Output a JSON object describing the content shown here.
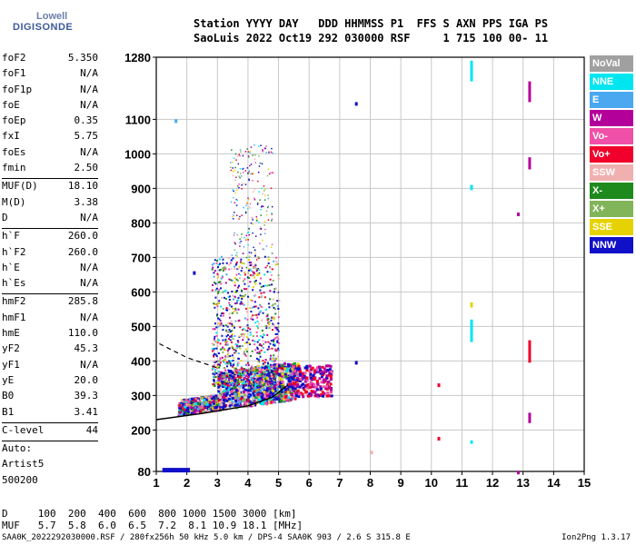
{
  "logo": {
    "line1": "Lowell",
    "line2": "DIGISONDE"
  },
  "header": {
    "line1": "Station YYYY DAY   DDD HHMMSS P1  FFS S AXN PPS IGA PS",
    "line2": "SaoLuis 2022 Oct19 292 030000 RSF     1 715 100 00- 11"
  },
  "params": [
    [
      {
        "label": "foF2",
        "value": "5.350"
      },
      {
        "label": "foF1",
        "value": "N/A"
      },
      {
        "label": "foF1p",
        "value": "N/A"
      },
      {
        "label": "foE",
        "value": "N/A"
      },
      {
        "label": "foEp",
        "value": "0.35"
      },
      {
        "label": "fxI",
        "value": "5.75"
      },
      {
        "label": "foEs",
        "value": "N/A"
      },
      {
        "label": "fmin",
        "value": "2.50"
      }
    ],
    [
      {
        "label": "MUF(D)",
        "value": "18.10"
      },
      {
        "label": "M(D)",
        "value": "3.38"
      },
      {
        "label": "D",
        "value": "N/A"
      }
    ],
    [
      {
        "label": "h`F",
        "value": "260.0"
      },
      {
        "label": "h`F2",
        "value": "260.0"
      },
      {
        "label": "h`E",
        "value": "N/A"
      },
      {
        "label": "h`Es",
        "value": "N/A"
      }
    ],
    [
      {
        "label": "hmF2",
        "value": "285.8"
      },
      {
        "label": "hmF1",
        "value": "N/A"
      },
      {
        "label": "hmE",
        "value": "110.0"
      },
      {
        "label": "yF2",
        "value": "45.3"
      },
      {
        "label": "yF1",
        "value": "N/A"
      },
      {
        "label": "yE",
        "value": "20.0"
      },
      {
        "label": "B0",
        "value": "39.3"
      },
      {
        "label": "B1",
        "value": "3.41"
      }
    ],
    [
      {
        "label": "C-level",
        "value": "44"
      }
    ],
    [
      {
        "label": "Auto:",
        "value": ""
      },
      {
        "label": "Artist5",
        "value": ""
      },
      {
        "label": "500200",
        "value": ""
      }
    ]
  ],
  "legend": [
    {
      "label": "NoVal",
      "color": "#a0a0a0"
    },
    {
      "label": "NNE",
      "color": "#00e6f0"
    },
    {
      "label": "E",
      "color": "#4aa8f0"
    },
    {
      "label": "W",
      "color": "#b4009a"
    },
    {
      "label": "Vo-",
      "color": "#f050a8"
    },
    {
      "label": "Vo+",
      "color": "#f0002a"
    },
    {
      "label": "SSW",
      "color": "#f0b0b0"
    },
    {
      "label": "X-",
      "color": "#1e8a1e"
    },
    {
      "label": "X+",
      "color": "#82b45a"
    },
    {
      "label": "SSE",
      "color": "#e6d200"
    },
    {
      "label": "NNW",
      "color": "#1010c8"
    }
  ],
  "footer": {
    "d_row": "D     100  200  400  600  800 1000 1500 3000 [km]",
    "muf_row": "MUF   5.7  5.8  6.0  6.5  7.2  8.1 10.9 18.1 [MHz]",
    "file_line": "SAA0K_2022292030000.RSF / 280fx256h 50 kHz 5.0 km / DPS-4 SAA0K 903 / 2.6 S 315.8 E",
    "version": "Ion2Png 1.3.17"
  },
  "chart_data": {
    "type": "scatter",
    "xlim": [
      1,
      15
    ],
    "ylim": [
      80,
      1280
    ],
    "x_ticks": [
      1,
      2,
      3,
      4,
      5,
      6,
      7,
      8,
      9,
      10,
      11,
      12,
      13,
      14,
      15
    ],
    "y_ticks": [
      80,
      200,
      300,
      400,
      500,
      600,
      700,
      800,
      900,
      1000,
      1100,
      1280
    ],
    "grid": true,
    "clusters": [
      {
        "name": "F-trace",
        "x": [
          1.7,
          5.6
        ],
        "y": [
          240,
          330
        ]
      },
      {
        "name": "spread-F",
        "x": [
          2.8,
          5.0
        ],
        "y": [
          330,
          700
        ]
      },
      {
        "name": "spread-F-upper",
        "x": [
          3.4,
          4.8
        ],
        "y": [
          650,
          1000
        ]
      },
      {
        "name": "tail",
        "x": [
          5.4,
          6.7
        ],
        "y": [
          300,
          390
        ]
      }
    ],
    "extra_points": [
      {
        "x": 7.5,
        "y": 1150,
        "color": "#1010c8"
      },
      {
        "x": 7.5,
        "y": 400,
        "color": "#1010c8"
      },
      {
        "x": 12.8,
        "y": 830,
        "color": "#b4009a"
      },
      {
        "x": 12.8,
        "y": 82,
        "color": "#b4009a"
      },
      {
        "x": 10.2,
        "y": 335,
        "color": "#f0002a"
      },
      {
        "x": 10.2,
        "y": 180,
        "color": "#f0002a"
      },
      {
        "x": 8.0,
        "y": 140,
        "color": "#f0b0b0"
      },
      {
        "x": 1.6,
        "y": 1100,
        "color": "#4aa8f0"
      },
      {
        "x": 2.2,
        "y": 660,
        "color": "#1010c8"
      }
    ],
    "vertical_streaks": [
      {
        "x": 11.3,
        "y": [
          1210,
          1270
        ],
        "color": "#00e6f0"
      },
      {
        "x": 11.3,
        "y": [
          455,
          520
        ],
        "color": "#00e6f0"
      },
      {
        "x": 11.3,
        "y": [
          895,
          910
        ],
        "color": "#00e6f0"
      },
      {
        "x": 11.3,
        "y": [
          160,
          170
        ],
        "color": "#00e6f0"
      },
      {
        "x": 11.3,
        "y": [
          555,
          570
        ],
        "color": "#e6d200"
      },
      {
        "x": 13.2,
        "y": [
          1150,
          1210
        ],
        "color": "#b4009a"
      },
      {
        "x": 13.2,
        "y": [
          955,
          990
        ],
        "color": "#b4009a"
      },
      {
        "x": 13.2,
        "y": [
          395,
          460
        ],
        "color": "#f0002a"
      },
      {
        "x": 13.2,
        "y": [
          220,
          250
        ],
        "color": "#b4009a"
      }
    ],
    "bottom_bar": {
      "x": [
        1.2,
        2.1
      ],
      "y": 85,
      "color": "#1010c8"
    },
    "profile_curve": {
      "x": [
        1.0,
        2.5,
        4.0,
        4.8,
        5.3
      ],
      "y": [
        230,
        248,
        270,
        295,
        330
      ]
    },
    "dashed_curve": {
      "x": [
        1.1,
        2.0,
        3.0
      ],
      "y": [
        450,
        410,
        380
      ]
    }
  }
}
